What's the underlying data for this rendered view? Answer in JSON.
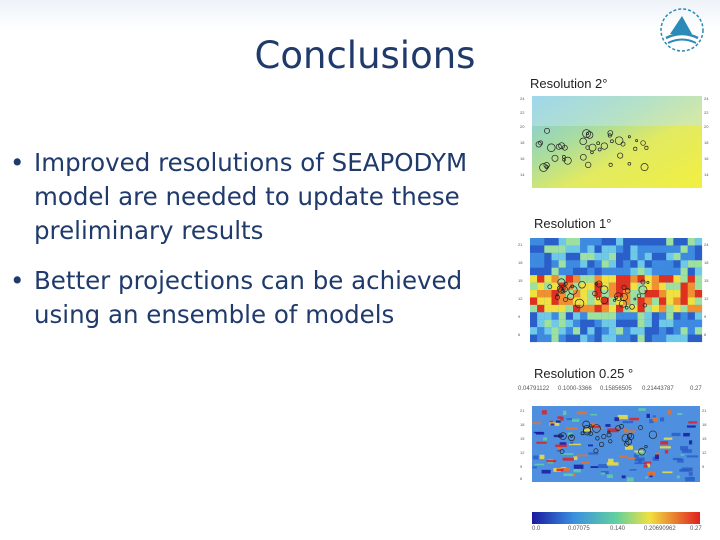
{
  "slide": {
    "title": "Conclusions",
    "bullets": [
      {
        "text": "Improved resolutions of SEAPODYM model are needed to update these preliminary results"
      },
      {
        "text": "Better projections can be achieved using an ensemble of models"
      }
    ]
  },
  "figures": {
    "panel1": {
      "label": "Resolution  2°",
      "colormap": "yellow-green-blue"
    },
    "panel2": {
      "label": "Resolution 1°",
      "colormap": "blue-yellow-red"
    },
    "panel3": {
      "label": "Resolution 0.25 °",
      "scale_top": [
        "0.04791122",
        "0.1000-3366",
        "0.15856505",
        "0.21443787",
        "0.27"
      ],
      "colorbar_ticks": [
        "0.0",
        "0.07075",
        "0.140",
        "0.20690962",
        "0.27"
      ]
    }
  },
  "logo": {
    "icon": "organization-logo-icon",
    "color": "#2a8ab8"
  }
}
